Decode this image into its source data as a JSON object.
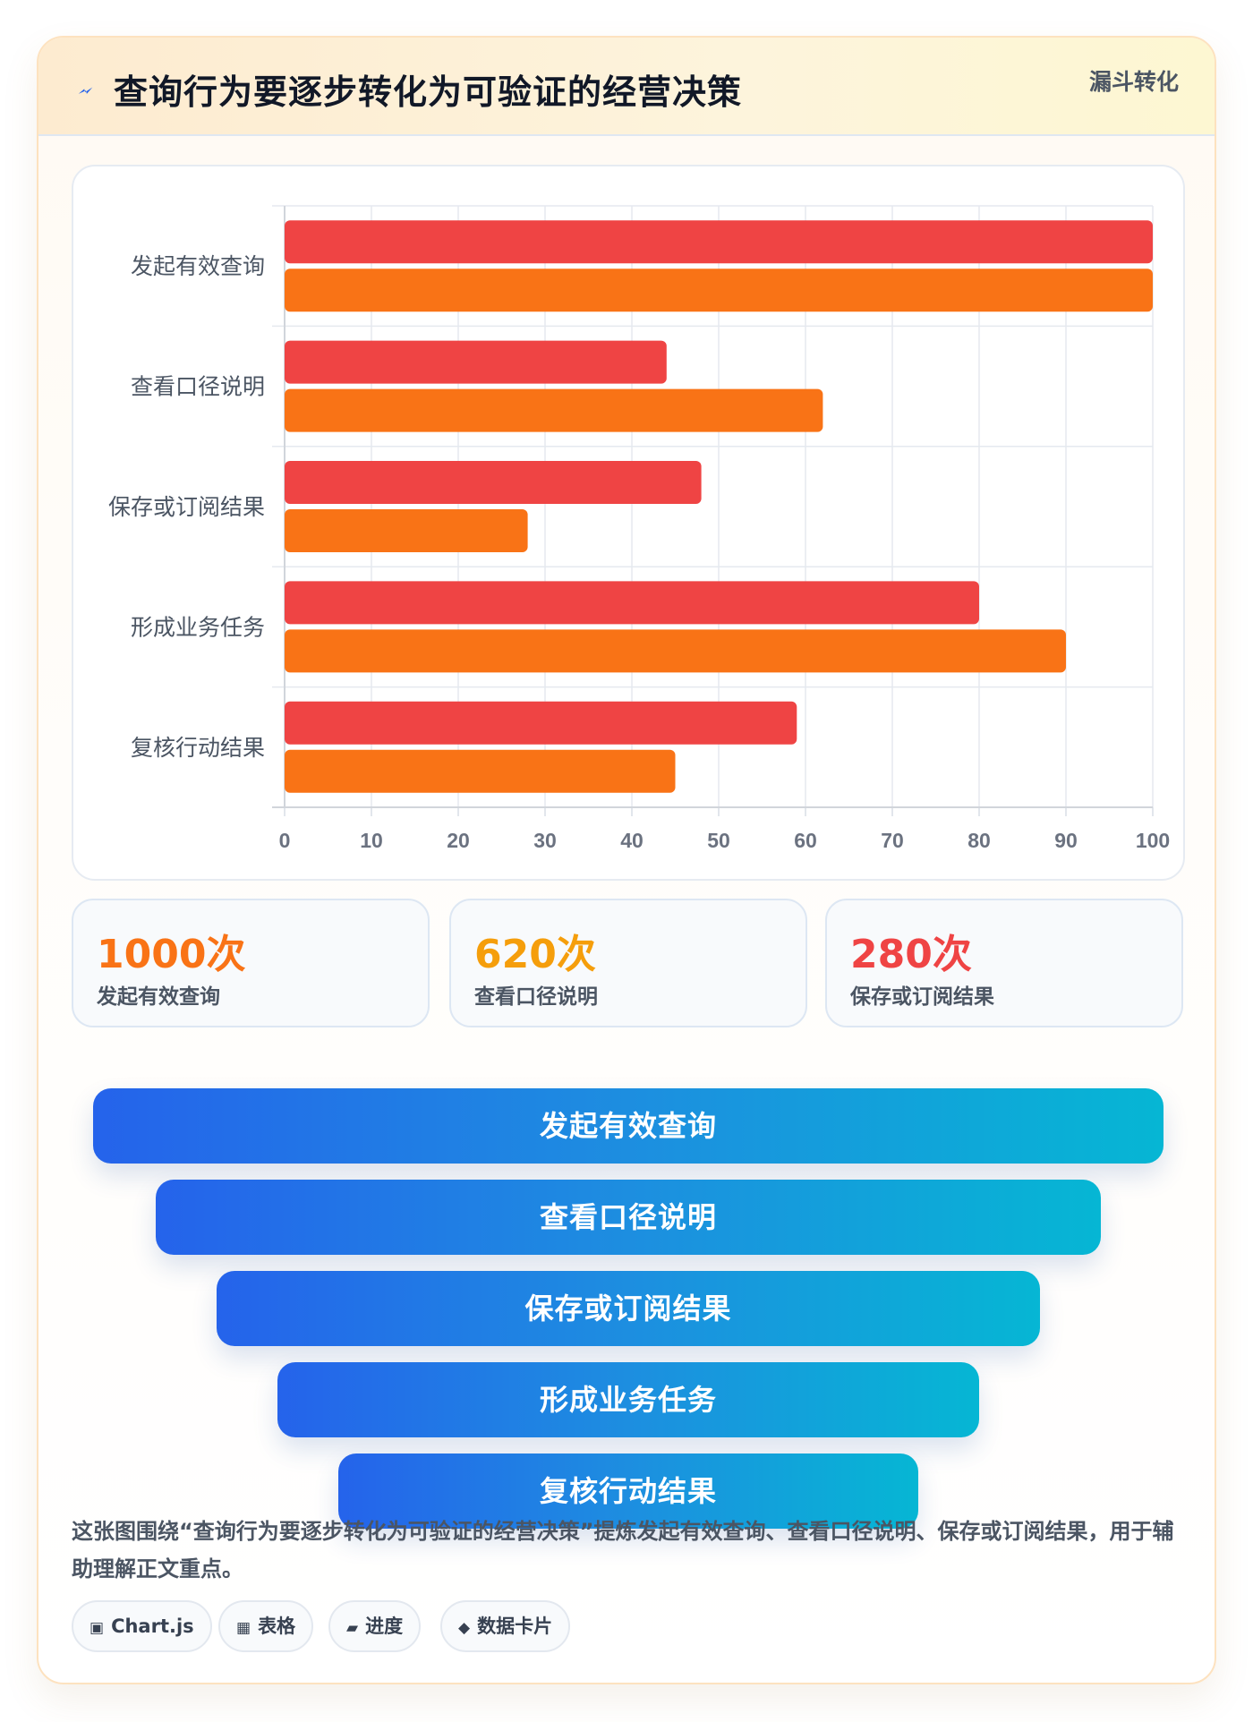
{
  "header": {
    "title": "查询行为要逐步转化为可验证的经营决策",
    "tag": "漏斗转化",
    "icon": "lightning-icon"
  },
  "chart_data": {
    "type": "bar",
    "orientation": "horizontal",
    "categories": [
      "发起有效查询",
      "查看口径说明",
      "保存或订阅结果",
      "形成业务任务",
      "复核行动结果"
    ],
    "series": [
      {
        "values": [
          100,
          44,
          48,
          80,
          59
        ],
        "color": "#ef4444"
      },
      {
        "values": [
          100,
          62,
          28,
          90,
          45
        ],
        "color": "#f97316"
      }
    ],
    "xlim": [
      0,
      100
    ],
    "xticks": [
      "0",
      "10",
      "20",
      "30",
      "40",
      "50",
      "60",
      "70",
      "80",
      "90",
      "100"
    ],
    "grid": true,
    "legend": "none"
  },
  "stats": [
    {
      "value": "1000次",
      "label": "发起有效查询",
      "color": "#f97316"
    },
    {
      "value": "620次",
      "label": "查看口径说明",
      "color": "#f59e0b"
    },
    {
      "value": "280次",
      "label": "保存或订阅结果",
      "color": "#ef4444"
    }
  ],
  "funnel": [
    "发起有效查询",
    "查看口径说明",
    "保存或订阅结果",
    "形成业务任务",
    "复核行动结果"
  ],
  "description": "这张图围绕“查询行为要逐步转化为可验证的经营决策”提炼发起有效查询、查看口径说明、保存或订阅结果，用于辅助理解正文重点。",
  "chips": [
    {
      "icon": "▣",
      "label": "Chart.js"
    },
    {
      "icon": "▦",
      "label": "表格"
    },
    {
      "icon": "▰",
      "label": "进度"
    },
    {
      "icon": "◆",
      "label": "数据卡片"
    }
  ]
}
